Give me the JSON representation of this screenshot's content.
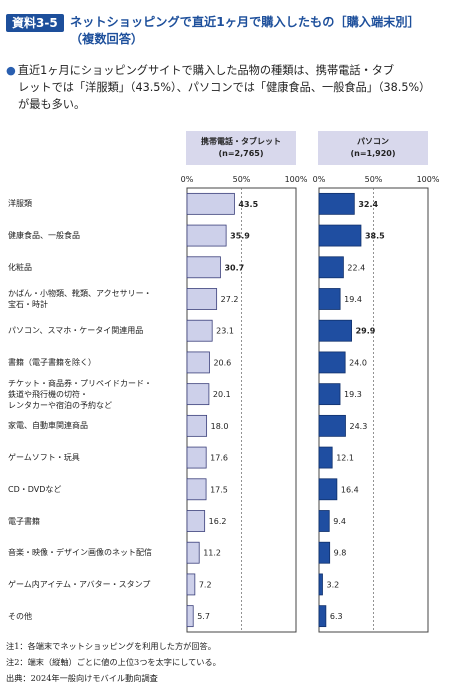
{
  "header": {
    "badge": "資料3-5",
    "title_line1": "ネットショッピングで直近1ヶ月で購入したもの［購入端末別］",
    "title_line2": "（複数回答）"
  },
  "summary": {
    "line1": "直近1ヶ月にショッピングサイトで購入した品物の種類は、携帯電話・タブ",
    "line2": "レットでは「洋服類」（43.5%）、パソコンでは「健康食品、一般食品」（38.5%）",
    "line3": "が最も多い。"
  },
  "colors": {
    "mobile_fill": "#cdd0ea",
    "pc_fill": "#1f4ea1",
    "header_bg": "#d8d8ec",
    "accent": "#1d4f9b"
  },
  "chart_data": {
    "type": "bar",
    "orientation": "horizontal",
    "categories": [
      "洋服類",
      "健康食品、一般食品",
      "化粧品",
      "かばん・小物類、靴類、アクセサリー・宝石・時計",
      "パソコン、スマホ・ケータイ関連用品",
      "書籍（電子書籍を除く）",
      "チケット・商品券・プリペイドカード・鉄道や飛行機の切符・レンタカーや宿泊の予約など",
      "家電、自動車関連商品",
      "ゲームソフト・玩具",
      "CD・DVDなど",
      "電子書籍",
      "音楽・映像・デザイン画像のネット配信",
      "ゲーム内アイテム・アバター・スタンプ",
      "その他"
    ],
    "category_lines": [
      [
        "洋服類"
      ],
      [
        "健康食品、一般食品"
      ],
      [
        "化粧品"
      ],
      [
        "かばん・小物類、靴類、アクセサリー・",
        "宝石・時計"
      ],
      [
        "パソコン、スマホ・ケータイ関連用品"
      ],
      [
        "書籍（電子書籍を除く）"
      ],
      [
        "チケット・商品券・プリペイドカード・",
        "鉄道や飛行機の切符・",
        "レンタカーや宿泊の予約など"
      ],
      [
        "家電、自動車関連商品"
      ],
      [
        "ゲームソフト・玩具"
      ],
      [
        "CD・DVDなど"
      ],
      [
        "電子書籍"
      ],
      [
        "音楽・映像・デザイン画像のネット配信"
      ],
      [
        "ゲーム内アイテム・アバター・スタンプ"
      ],
      [
        "その他"
      ]
    ],
    "series": [
      {
        "name": "携帯電話・タブレット",
        "n_label": "(n=2,765)",
        "values": [
          43.5,
          35.9,
          30.7,
          27.2,
          23.1,
          20.6,
          20.1,
          18.0,
          17.6,
          17.5,
          16.2,
          11.2,
          7.2,
          5.7
        ],
        "value_labels": [
          "43.5",
          "35.9",
          "30.7",
          "27.2",
          "23.1",
          "20.6",
          "20.1",
          "18.0",
          "17.6",
          "17.5",
          "16.2",
          "11.2",
          "7.2",
          "5.7"
        ],
        "top3": [
          0,
          1,
          2
        ]
      },
      {
        "name": "パソコン",
        "n_label": "(n=1,920)",
        "values": [
          32.4,
          38.5,
          22.4,
          19.4,
          29.9,
          24.0,
          19.3,
          24.3,
          12.1,
          16.4,
          9.4,
          9.8,
          3.2,
          6.3
        ],
        "value_labels": [
          "32.4",
          "38.5",
          "22.4",
          "19.4",
          "29.9",
          "24.0",
          "19.3",
          "24.3",
          "12.1",
          "16.4",
          "9.4",
          "9.8",
          "3.2",
          "6.3"
        ],
        "top3": [
          0,
          1,
          4
        ]
      }
    ],
    "xlim": [
      0,
      100
    ],
    "xticks": [
      "0%",
      "50%",
      "100%"
    ]
  },
  "notes": {
    "note1": "注1：各端末でネットショッピングを利用した方が回答。",
    "note2": "注2：端末（縦軸）ごとに値の上位3つを太字にしている。",
    "source": "出典：2024年一般向けモバイル動向調査"
  }
}
